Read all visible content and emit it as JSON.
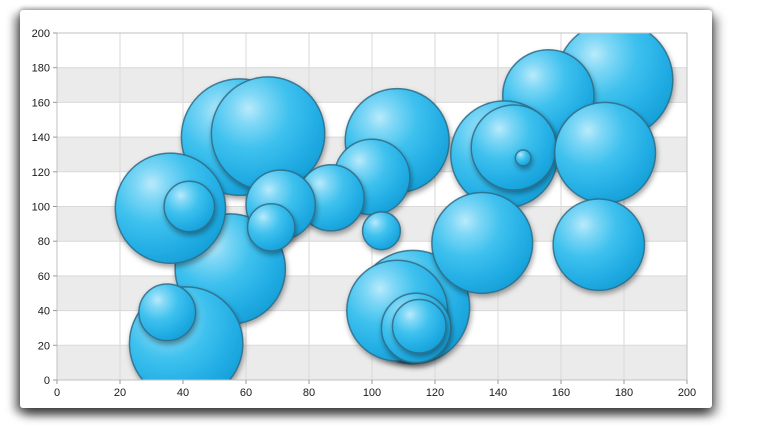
{
  "chart_data": {
    "type": "scatter",
    "subtype": "bubble",
    "title": "",
    "xlabel": "",
    "ylabel": "",
    "xlim": [
      0,
      200
    ],
    "ylim": [
      0,
      200
    ],
    "x_ticks": [
      0,
      20,
      40,
      60,
      80,
      100,
      120,
      140,
      160,
      180,
      200
    ],
    "y_ticks": [
      0,
      20,
      40,
      60,
      80,
      100,
      120,
      140,
      160,
      180,
      200
    ],
    "grid": true,
    "legend": "none",
    "points": [
      {
        "x": 113,
        "y": 42,
        "r": 18
      },
      {
        "x": 108,
        "y": 40,
        "r": 16
      },
      {
        "x": 114,
        "y": 30,
        "r": 11
      },
      {
        "x": 115,
        "y": 31,
        "r": 8.5
      },
      {
        "x": 58,
        "y": 140,
        "r": 18.5
      },
      {
        "x": 67,
        "y": 142,
        "r": 18
      },
      {
        "x": 55,
        "y": 64,
        "r": 17.5
      },
      {
        "x": 41,
        "y": 21,
        "r": 18
      },
      {
        "x": 35,
        "y": 39,
        "r": 9
      },
      {
        "x": 36,
        "y": 99,
        "r": 17.5
      },
      {
        "x": 42,
        "y": 100,
        "r": 8
      },
      {
        "x": 108,
        "y": 138,
        "r": 16.5
      },
      {
        "x": 100,
        "y": 117,
        "r": 12
      },
      {
        "x": 87,
        "y": 105,
        "r": 10.5
      },
      {
        "x": 71,
        "y": 101,
        "r": 11
      },
      {
        "x": 68,
        "y": 88,
        "r": 7.5
      },
      {
        "x": 103,
        "y": 86,
        "r": 6
      },
      {
        "x": 177,
        "y": 173,
        "r": 18.5
      },
      {
        "x": 156,
        "y": 164,
        "r": 14.5
      },
      {
        "x": 142,
        "y": 130,
        "r": 17
      },
      {
        "x": 145,
        "y": 134,
        "r": 13.5
      },
      {
        "x": 148,
        "y": 128,
        "r": 2.5
      },
      {
        "x": 174,
        "y": 131,
        "r": 16
      },
      {
        "x": 135,
        "y": 79,
        "r": 16
      },
      {
        "x": 172,
        "y": 78,
        "r": 14.5
      }
    ],
    "style": {
      "bubble_gradient": [
        "#b9eafb",
        "#7ed7f6",
        "#3ec1ee",
        "#23aee5",
        "#149ed6"
      ],
      "bubble_stroke": "#2e6b86",
      "band_color": "#ebebeb",
      "band_alt_color": "#ffffff",
      "gridline_color": "#d9d9d9",
      "plot_border_color": "#c0c0c0",
      "tick_color": "#9a9a9a",
      "label_color": "#1a1a1a",
      "panel_background": "#ffffff"
    }
  }
}
